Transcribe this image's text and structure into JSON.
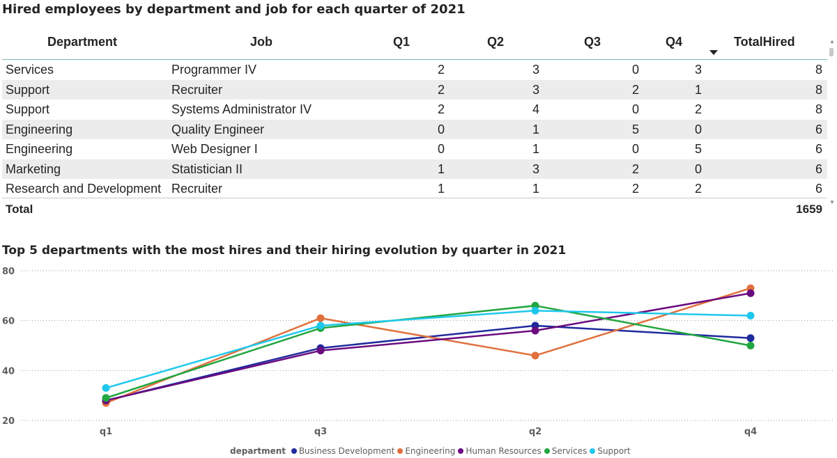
{
  "table": {
    "title": "Hired employees by department and job for each quarter of 2021",
    "columns": [
      "Department",
      "Job",
      "Q1",
      "Q2",
      "Q3",
      "Q4",
      "TotalHired"
    ],
    "rows": [
      {
        "department": "Services",
        "job": "Programmer IV",
        "q1": "2",
        "q2": "3",
        "q3": "0",
        "q4": "3",
        "total": "8"
      },
      {
        "department": "Support",
        "job": "Recruiter",
        "q1": "2",
        "q2": "3",
        "q3": "2",
        "q4": "1",
        "total": "8"
      },
      {
        "department": "Support",
        "job": "Systems Administrator IV",
        "q1": "2",
        "q2": "4",
        "q3": "0",
        "q4": "2",
        "total": "8"
      },
      {
        "department": "Engineering",
        "job": "Quality Engineer",
        "q1": "0",
        "q2": "1",
        "q3": "5",
        "q4": "0",
        "total": "6"
      },
      {
        "department": "Engineering",
        "job": "Web Designer I",
        "q1": "0",
        "q2": "1",
        "q3": "0",
        "q4": "5",
        "total": "6"
      },
      {
        "department": "Marketing",
        "job": "Statistician II",
        "q1": "1",
        "q2": "3",
        "q3": "2",
        "q4": "0",
        "total": "6"
      },
      {
        "department": "Research and Development",
        "job": "Recruiter",
        "q1": "1",
        "q2": "1",
        "q3": "2",
        "q4": "2",
        "total": "6"
      }
    ],
    "total_label": "Total",
    "total_value": "1659"
  },
  "chart_data": {
    "type": "line",
    "title": "Top 5 departments with the most hires and their hiring evolution by quarter in 2021",
    "categories": [
      "q1",
      "q3",
      "q2",
      "q4"
    ],
    "yticks": [
      "20",
      "40",
      "60",
      "80"
    ],
    "ylim": [
      20,
      80
    ],
    "grid": true,
    "legend_title": "department",
    "legend_position": "bottom",
    "series": [
      {
        "name": "Business Development",
        "color": "#1f2a9c",
        "values": [
          28,
          49,
          58,
          53
        ]
      },
      {
        "name": "Engineering",
        "color": "#e0703c",
        "values": [
          27,
          61,
          46,
          73
        ]
      },
      {
        "name": "Human Resources",
        "color": "#6b0b80",
        "values": [
          28,
          48,
          56,
          71
        ]
      },
      {
        "name": "Services",
        "color": "#21a640",
        "values": [
          29,
          57,
          66,
          50
        ]
      },
      {
        "name": "Support",
        "color": "#1ec8ec",
        "values": [
          33,
          58,
          64,
          62
        ]
      }
    ]
  }
}
